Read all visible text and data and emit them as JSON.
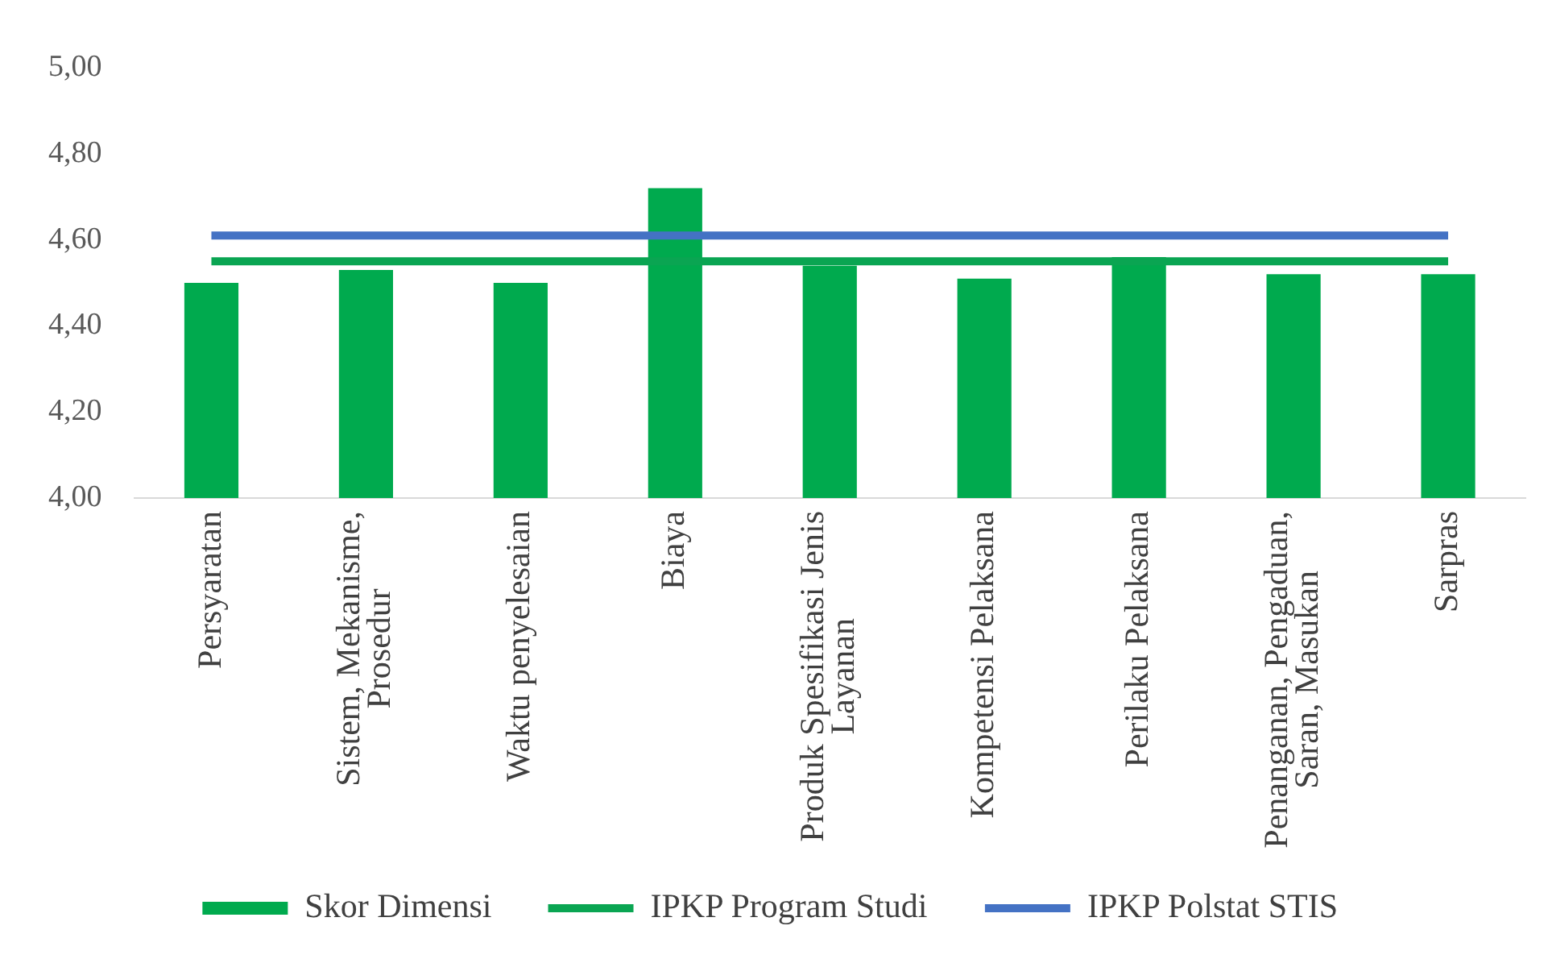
{
  "chart_data": {
    "type": "bar",
    "categories": [
      "Persyaratan",
      "Sistem, Mekanisme, Prosedur",
      "Waktu penyelesaian",
      "Biaya",
      "Produk Spesifikasi Jenis Layanan",
      "Kompetensi Pelaksana",
      "Perilaku Pelaksana",
      "Penanganan, Pengaduan, Saran, Masukan",
      "Sarpras"
    ],
    "series": [
      {
        "name": "Skor Dimensi",
        "color": "#00aa4e",
        "values": [
          4.5,
          4.53,
          4.5,
          4.72,
          4.54,
          4.51,
          4.56,
          4.52,
          4.52
        ]
      },
      {
        "name": "IPKP Program Studi",
        "type": "line",
        "color": "#0aa552",
        "values": [
          4.55,
          4.55,
          4.55,
          4.55,
          4.55,
          4.55,
          4.55,
          4.55,
          4.55
        ]
      },
      {
        "name": "IPKP Polstat STIS",
        "type": "line",
        "color": "#4472c4",
        "values": [
          4.61,
          4.61,
          4.61,
          4.61,
          4.61,
          4.61,
          4.61,
          4.61,
          4.61
        ]
      }
    ],
    "ylim": [
      4,
      5
    ],
    "yticks": [
      {
        "value": 4,
        "label": "4,00"
      },
      {
        "value": 4.2,
        "label": "4,20"
      },
      {
        "value": 4.4,
        "label": "4,40"
      },
      {
        "value": 4.6,
        "label": "4,60"
      },
      {
        "value": 4.8,
        "label": "4,80"
      },
      {
        "value": 5,
        "label": "5,00"
      }
    ],
    "grid": false,
    "legend": "bottom",
    "marker": "none"
  }
}
